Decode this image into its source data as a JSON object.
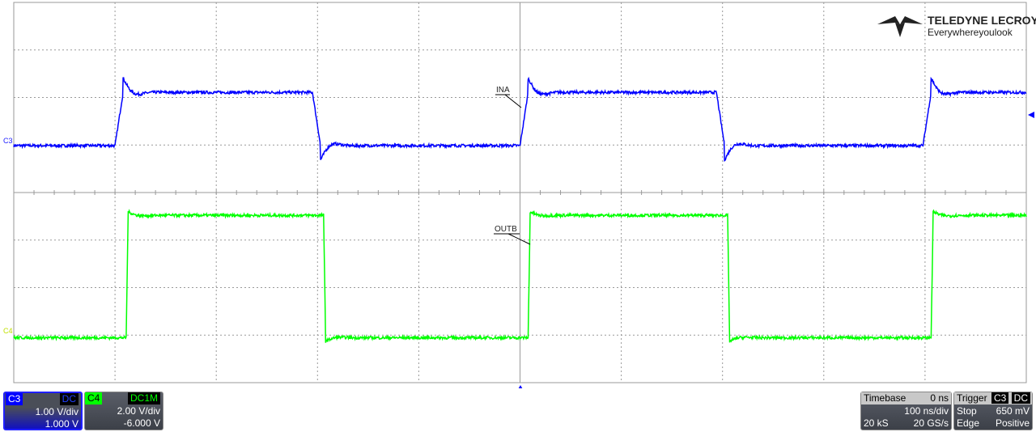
{
  "brand": {
    "name": "TELEDYNE LECROY",
    "tagline": "Everywhereyoulook"
  },
  "chart_data": {
    "type": "line",
    "xlim_ns": [
      -500,
      500
    ],
    "grid": true,
    "traces": [
      {
        "id": "C3",
        "label": "INA",
        "color": "#0000ff",
        "volts_per_div": 1.0,
        "offset_v": 1.0,
        "low_v": 0.0,
        "high_v": 1.12,
        "overshoot_v": 0.3,
        "rising_edges_ns": [
          -400,
          0,
          398
        ],
        "falling_edges_ns": [
          -205,
          194
        ],
        "rise_time_ns": 8
      },
      {
        "id": "C4",
        "label": "OUTB",
        "color": "#00ff00",
        "volts_per_div": 2.0,
        "offset_v": -6.0,
        "low_v": -0.05,
        "high_v": 5.1,
        "overshoot_v": 0.15,
        "rising_edges_ns": [
          -389,
          8,
          406
        ],
        "falling_edges_ns": [
          -194,
          205
        ],
        "rise_time_ns": 2
      }
    ]
  },
  "channels": [
    {
      "name": "C3",
      "coupling": "DC",
      "vdiv": "1.00 V/div",
      "offset": "1.000 V",
      "color": "#0000ff"
    },
    {
      "name": "C4",
      "coupling": "DC1M",
      "vdiv": "2.00 V/div",
      "offset": "-6.000 V",
      "color": "#00ff00"
    }
  ],
  "timebase": {
    "label": "Timebase",
    "delay": "0 ns",
    "tdiv": "100 ns/div",
    "samples": "20 kS",
    "rate": "20 GS/s"
  },
  "trigger": {
    "label": "Trigger",
    "source": "C3",
    "coupling": "DC",
    "mode": "Stop",
    "level": "650 mV",
    "type": "Edge",
    "slope": "Positive"
  }
}
